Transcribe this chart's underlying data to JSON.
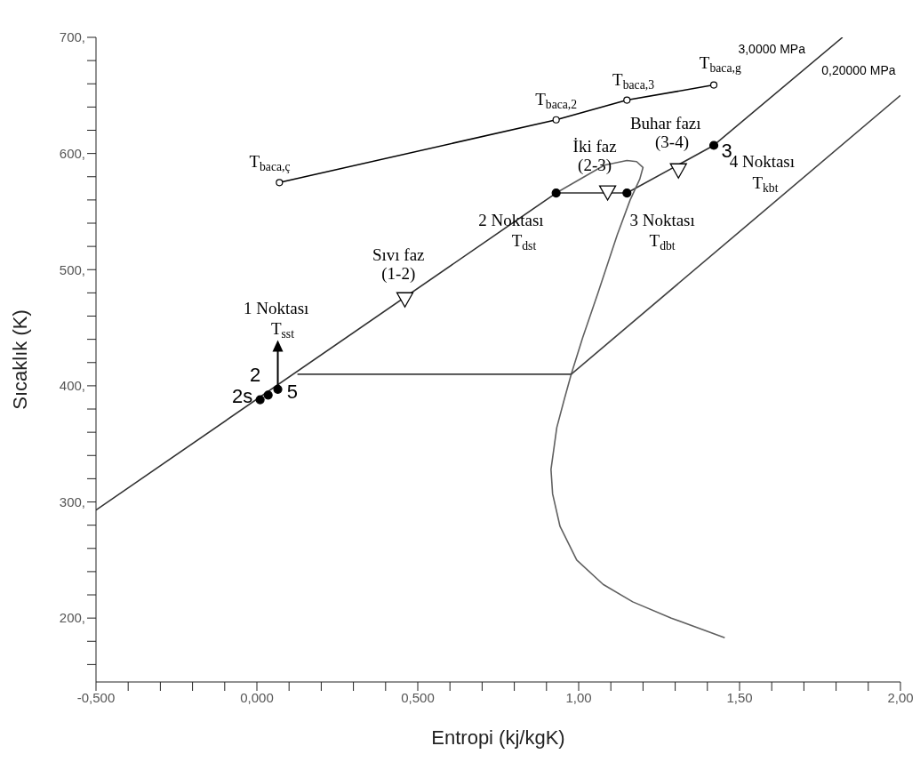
{
  "chart_data": {
    "type": "line",
    "xlabel": "Entropi (kj/kgK)",
    "ylabel": "Sıcaklık (K)",
    "xlim": [
      -0.5,
      2.0
    ],
    "ylim": [
      145,
      700
    ],
    "xticks": [
      {
        "value": -0.5,
        "label": "-0,500"
      },
      {
        "value": -0.4,
        "label": null
      },
      {
        "value": -0.3,
        "label": null
      },
      {
        "value": -0.2,
        "label": null
      },
      {
        "value": -0.1,
        "label": null
      },
      {
        "value": 0,
        "label": "0,000"
      },
      {
        "value": 0.1,
        "label": null
      },
      {
        "value": 0.2,
        "label": null
      },
      {
        "value": 0.3,
        "label": null
      },
      {
        "value": 0.4,
        "label": null
      },
      {
        "value": 0.5,
        "label": "0,500"
      },
      {
        "value": 0.6,
        "label": null
      },
      {
        "value": 0.7,
        "label": null
      },
      {
        "value": 0.8,
        "label": null
      },
      {
        "value": 0.9,
        "label": null
      },
      {
        "value": 1.0,
        "label": "1,00"
      },
      {
        "value": 1.1,
        "label": null
      },
      {
        "value": 1.2,
        "label": null
      },
      {
        "value": 1.3,
        "label": null
      },
      {
        "value": 1.4,
        "label": null
      },
      {
        "value": 1.5,
        "label": "1,50"
      },
      {
        "value": 1.6,
        "label": null
      },
      {
        "value": 1.7,
        "label": null
      },
      {
        "value": 1.8,
        "label": null
      },
      {
        "value": 1.9,
        "label": null
      },
      {
        "value": 2.0,
        "label": "2,00"
      }
    ],
    "yticks": [
      {
        "value": 160,
        "label": null
      },
      {
        "value": 180,
        "label": null
      },
      {
        "value": 200,
        "label": "200,"
      },
      {
        "value": 220,
        "label": null
      },
      {
        "value": 240,
        "label": null
      },
      {
        "value": 260,
        "label": null
      },
      {
        "value": 280,
        "label": null
      },
      {
        "value": 300,
        "label": "300,"
      },
      {
        "value": 320,
        "label": null
      },
      {
        "value": 340,
        "label": null
      },
      {
        "value": 360,
        "label": null
      },
      {
        "value": 380,
        "label": null
      },
      {
        "value": 400,
        "label": "400,"
      },
      {
        "value": 420,
        "label": null
      },
      {
        "value": 440,
        "label": null
      },
      {
        "value": 460,
        "label": null
      },
      {
        "value": 480,
        "label": null
      },
      {
        "value": 500,
        "label": "500,"
      },
      {
        "value": 520,
        "label": null
      },
      {
        "value": 540,
        "label": null
      },
      {
        "value": 560,
        "label": null
      },
      {
        "value": 580,
        "label": null
      },
      {
        "value": 600,
        "label": "600,"
      },
      {
        "value": 620,
        "label": null
      },
      {
        "value": 640,
        "label": null
      },
      {
        "value": 660,
        "label": null
      },
      {
        "value": 680,
        "label": null
      },
      {
        "value": 700,
        "label": "700,"
      }
    ],
    "series": [
      {
        "color": "#303030",
        "marker": "none",
        "x": [
          -0.5,
          0.93,
          1.15,
          1.42,
          1.82
        ],
        "values": [
          293,
          566,
          566,
          607,
          700
        ]
      },
      {
        "color": "#606060",
        "marker": "none",
        "x": [
          1.454,
          1.288,
          1.168,
          1.076,
          0.994,
          0.942,
          0.919,
          0.914,
          0.932,
          0.955,
          0.977,
          1.012,
          1.06,
          1.12,
          1.16,
          1.19,
          1.2,
          1.18,
          1.15,
          1.08,
          0.93
        ],
        "values": [
          183,
          200,
          214,
          229,
          250,
          279,
          307,
          328,
          364,
          388,
          410,
          441,
          480,
          530,
          560,
          578,
          588,
          593,
          594,
          590,
          566
        ]
      },
      {
        "color": "#404040",
        "marker": "none",
        "x": [
          0.126,
          0.977,
          2.0
        ],
        "values": [
          410,
          410,
          650
        ]
      },
      {
        "color": "#000000",
        "marker": "circle",
        "x": [
          0.07,
          0.93,
          1.15,
          1.42
        ],
        "values": [
          575,
          629,
          646,
          659
        ]
      },
      {
        "type": "scatter",
        "color": "#000000",
        "marker": "circle",
        "x": [
          0.01,
          0.035,
          0.065,
          0.93,
          1.15,
          1.42
        ],
        "values": [
          388,
          392,
          397,
          566,
          566,
          607
        ]
      },
      {
        "type": "scatter",
        "color": "#000000",
        "marker": "triangle",
        "x": [
          0.46,
          1.09,
          1.31
        ],
        "values": [
          474,
          566,
          585
        ]
      }
    ],
    "annotations": [
      "3,0000 MPa",
      "0,20000 MPa",
      "Sıvı faz",
      "(1-2)",
      "İki faz",
      "(2-3)",
      "Buhar fazı",
      "(3-4)",
      "1 Noktası",
      {
        "text": "T$_{sst}$",
        "x": 0.065,
        "y": 397
      },
      "2 Noktası",
      "T$_{dst}$",
      "3 Noktası",
      "T$_{dbt}$",
      "4 Noktası",
      "T$_{kbt}$",
      "2s",
      "2",
      "5",
      "3",
      "T$_{baca,ç}$",
      "T$_{baca,2}$",
      "T$_{baca,3}$",
      "T$_{baca,g}$"
    ]
  }
}
